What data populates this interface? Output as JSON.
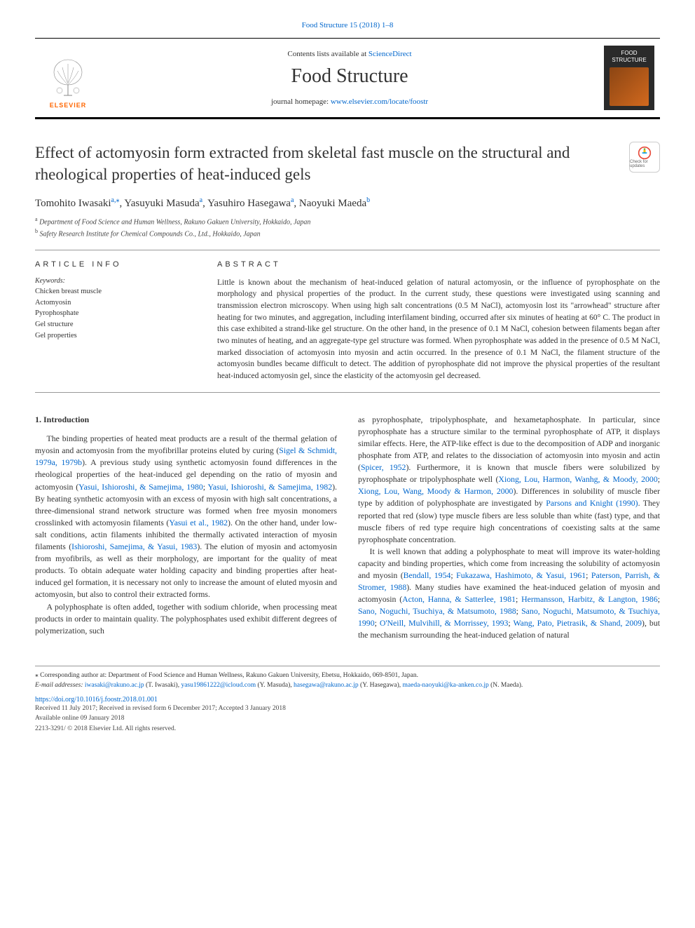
{
  "citation": {
    "text": "Food Structure 15 (2018) 1–8",
    "href": "#"
  },
  "header": {
    "contents_prefix": "Contents lists available at ",
    "contents_link": "ScienceDirect",
    "journal_name": "Food Structure",
    "homepage_prefix": "journal homepage: ",
    "homepage_link": "www.elsevier.com/locate/foostr",
    "publisher": "ELSEVIER",
    "cover_title": "FOOD STRUCTURE"
  },
  "article": {
    "title": "Effect of actomyosin form extracted from skeletal fast muscle on the structural and rheological properties of heat-induced gels",
    "updates_label": "Check for updates"
  },
  "authors": [
    {
      "name": "Tomohito Iwasaki",
      "sup": "a,⁎"
    },
    {
      "name": "Yasuyuki Masuda",
      "sup": "a"
    },
    {
      "name": "Yasuhiro Hasegawa",
      "sup": "a"
    },
    {
      "name": "Naoyuki Maeda",
      "sup": "b"
    }
  ],
  "affiliations": [
    {
      "sup": "a",
      "text": "Department of Food Science and Human Wellness, Rakuno Gakuen University, Hokkaido, Japan"
    },
    {
      "sup": "b",
      "text": "Safety Research Institute for Chemical Compounds Co., Ltd., Hokkaido, Japan"
    }
  ],
  "info": {
    "heading": "ARTICLE INFO",
    "keywords_label": "Keywords:",
    "keywords": [
      "Chicken breast muscle",
      "Actomyosin",
      "Pyrophosphate",
      "Gel structure",
      "Gel properties"
    ]
  },
  "abstract": {
    "heading": "ABSTRACT",
    "text": "Little is known about the mechanism of heat-induced gelation of natural actomyosin, or the influence of pyrophosphate on the morphology and physical properties of the product. In the current study, these questions were investigated using scanning and transmission electron microscopy. When using high salt concentrations (0.5 M NaCl), actomyosin lost its \"arrowhead\" structure after heating for two minutes, and aggregation, including interfilament binding, occurred after six minutes of heating at 60° C. The product in this case exhibited a strand-like gel structure. On the other hand, in the presence of 0.1 M NaCl, cohesion between filaments began after two minutes of heating, and an aggregate-type gel structure was formed. When pyrophosphate was added in the presence of 0.5 M NaCl, marked dissociation of actomyosin into myosin and actin occurred. In the presence of 0.1 M NaCl, the filament structure of the actomyosin bundles became difficult to detect. The addition of pyrophosphate did not improve the physical properties of the resultant heat-induced actomyosin gel, since the elasticity of the actomyosin gel decreased."
  },
  "body": {
    "heading": "1. Introduction",
    "p1_a": "The binding properties of heated meat products are a result of the thermal gelation of myosin and actomyosin from the myofibrillar proteins eluted by curing (",
    "p1_r1": "Sigel & Schmidt, 1979a, 1979b",
    "p1_b": "). A previous study using synthetic actomyosin found differences in the rheological properties of the heat-induced gel depending on the ratio of myosin and actomyosin (",
    "p1_r2": "Yasui, Ishioroshi, & Samejima, 1980",
    "p1_c": "; ",
    "p1_r3": "Yasui, Ishioroshi, & Samejima, 1982",
    "p1_d": "). By heating synthetic actomyosin with an excess of myosin with high salt concentrations, a three-dimensional strand network structure was formed when free myosin monomers crosslinked with actomyosin filaments (",
    "p1_r4": "Yasui et al., 1982",
    "p1_e": "). On the other hand, under low-salt conditions, actin filaments inhibited the thermally activated interaction of myosin filaments (",
    "p1_r5": "Ishioroshi, Samejima, & Yasui, 1983",
    "p1_f": "). The elution of myosin and actomyosin from myofibrils, as well as their morphology, are important for the quality of meat products. To obtain adequate water holding capacity and binding properties after heat-induced gel formation, it is necessary not only to increase the amount of eluted myosin and actomyosin, but also to control their extracted forms.",
    "p2": "A polyphosphate is often added, together with sodium chloride, when processing meat products in order to maintain quality. The polyphosphates used exhibit different degrees of polymerization, such",
    "p3_a": "as pyrophosphate, tripolyphosphate, and hexametaphosphate. In particular, since pyrophosphate has a structure similar to the terminal pyrophosphate of ATP, it displays similar effects. Here, the ATP-like effect is due to the decomposition of ADP and inorganic phosphate from ATP, and relates to the dissociation of actomyosin into myosin and actin (",
    "p3_r1": "Spicer, 1952",
    "p3_b": "). Furthermore, it is known that muscle fibers were solubilized by pyrophosphate or tripolyphosphate well (",
    "p3_r2": "Xiong, Lou, Harmon, Wanhg, & Moody, 2000",
    "p3_c": "; ",
    "p3_r3": "Xiong, Lou, Wang, Moody & Harmon, 2000",
    "p3_d": "). Differences in solubility of muscle fiber type by addition of polyphosphate are investigated by ",
    "p3_r4": "Parsons and Knight (1990)",
    "p3_e": ". They reported that red (slow) type muscle fibers are less soluble than white (fast) type, and that muscle fibers of red type require high concentrations of coexisting salts at the same pyrophosphate concentration.",
    "p4_a": "It is well known that adding a polyphosphate to meat will improve its water-holding capacity and binding properties, which come from increasing the solubility of actomyosin and myosin (",
    "p4_r1": "Bendall, 1954",
    "p4_b": "; ",
    "p4_r2": "Fukazawa, Hashimoto, & Yasui, 1961",
    "p4_c": "; ",
    "p4_r3": "Paterson, Parrish, & Stromer, 1988",
    "p4_d": "). Many studies have examined the heat-induced gelation of myosin and actomyosin (",
    "p4_r4": "Acton, Hanna, & Satterlee, 1981",
    "p4_e": "; ",
    "p4_r5": "Hermansson, Harbitz, & Langton, 1986",
    "p4_f": "; ",
    "p4_r6": "Sano, Noguchi, Tsuchiya, & Matsumoto, 1988",
    "p4_g": "; ",
    "p4_r7": "Sano, Noguchi, Matsumoto, & Tsuchiya, 1990",
    "p4_h": "; ",
    "p4_r8": "O'Neill, Mulvihill, & Morrissey, 1993",
    "p4_i": "; ",
    "p4_r9": "Wang, Pato, Pietrasik, & Shand, 2009",
    "p4_j": "), but the mechanism surrounding the heat-induced gelation of natural"
  },
  "footnotes": {
    "corr_label": "⁎",
    "corr_text": "Corresponding author at: Department of Food Science and Human Wellness, Rakuno Gakuen University, Ebetsu, Hokkaido, 069-8501, Japan.",
    "email_label": "E-mail addresses:",
    "emails": [
      {
        "addr": "iwasaki@rakuno.ac.jp",
        "who": " (T. Iwasaki), "
      },
      {
        "addr": "yasu19861222@icloud.com",
        "who": " (Y. Masuda), "
      },
      {
        "addr": "hasegawa@rakuno.ac.jp",
        "who": " (Y. Hasegawa), "
      },
      {
        "addr": "maeda-naoyuki@ka-anken.co.jp",
        "who": " (N. Maeda)."
      }
    ]
  },
  "meta": {
    "doi": "https://doi.org/10.1016/j.foostr.2018.01.001",
    "received": "Received 11 July 2017; Received in revised form 6 December 2017; Accepted 3 January 2018",
    "online": "Available online 09 January 2018",
    "copyright": "2213-3291/ © 2018 Elsevier Ltd. All rights reserved."
  },
  "colors": {
    "link": "#0066cc",
    "elsevier_orange": "#ff6600",
    "text": "#333333",
    "rule": "#999999"
  }
}
